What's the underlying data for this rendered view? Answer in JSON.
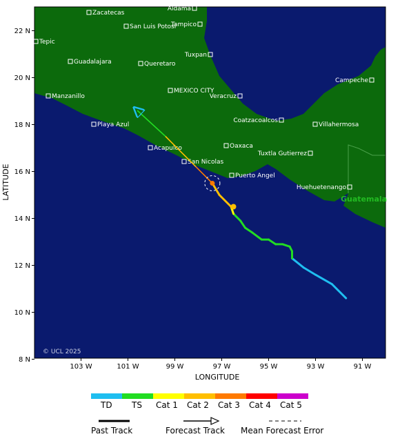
{
  "map": {
    "colors": {
      "ocean": "#0a1a6e",
      "land": "#0c6a0c",
      "border": "#4aa04a"
    },
    "axes": {
      "x_title": "LONGITUDE",
      "y_title": "LATITUDE",
      "x_ticks": [
        "103 W",
        "101 W",
        "99 W",
        "97 W",
        "95 W",
        "93 W",
        "91 W"
      ],
      "y_ticks": [
        "22 N",
        "20 N",
        "18 N",
        "16 N",
        "14 N",
        "12 N",
        "10 N",
        "8 N"
      ]
    },
    "cities": [
      {
        "name": "Zacatecas"
      },
      {
        "name": "Aldama"
      },
      {
        "name": "Tampico"
      },
      {
        "name": "San Luis Potosi"
      },
      {
        "name": "Tepic"
      },
      {
        "name": "Guadalajara"
      },
      {
        "name": "Queretaro"
      },
      {
        "name": "Tuxpan"
      },
      {
        "name": "Manzanillo"
      },
      {
        "name": "MEXICO CITY"
      },
      {
        "name": "Veracruz"
      },
      {
        "name": "Campeche"
      },
      {
        "name": "Playa Azul"
      },
      {
        "name": "Coatzacoalcos"
      },
      {
        "name": "Villahermosa"
      },
      {
        "name": "Acapulco"
      },
      {
        "name": "Oaxaca"
      },
      {
        "name": "Tuxtla Gutierrez"
      },
      {
        "name": "San Nicolas"
      },
      {
        "name": "Puerto Angel"
      },
      {
        "name": "Huehuetenango"
      }
    ],
    "country_label": "Guatemala",
    "copyright": "© UCL 2025",
    "track": {
      "past_points_lonlat": [
        [
          -91.7,
          10.6
        ],
        [
          -92.3,
          11.2
        ],
        [
          -93.0,
          11.6
        ],
        [
          -93.5,
          11.9
        ],
        [
          -94.0,
          12.3
        ],
        [
          -94.0,
          12.6
        ],
        [
          -94.1,
          12.8
        ],
        [
          -94.4,
          12.9
        ],
        [
          -94.7,
          12.9
        ],
        [
          -95.0,
          13.1
        ],
        [
          -95.3,
          13.1
        ],
        [
          -95.7,
          13.4
        ],
        [
          -96.0,
          13.6
        ],
        [
          -96.2,
          13.9
        ],
        [
          -96.5,
          14.2
        ],
        [
          -96.6,
          14.5
        ],
        [
          -97.1,
          15.0
        ],
        [
          -97.4,
          15.5
        ]
      ],
      "forecast_points_lonlat": [
        [
          -97.4,
          15.5
        ],
        [
          -98.1,
          16.2
        ],
        [
          -99.4,
          17.5
        ],
        [
          -100.6,
          18.6
        ]
      ],
      "current_position_lonlat": [
        -97.4,
        15.5
      ],
      "intensity_marker_lonlat": [
        -96.5,
        14.5
      ]
    }
  },
  "legend": {
    "categories": [
      {
        "label": "TD",
        "color": "#1fbef0"
      },
      {
        "label": "TS",
        "color": "#22dd22"
      },
      {
        "label": "Cat 1",
        "color": "#ffff00"
      },
      {
        "label": "Cat 2",
        "color": "#ffbf00"
      },
      {
        "label": "Cat 3",
        "color": "#ff7a00"
      },
      {
        "label": "Cat 4",
        "color": "#ff0000"
      },
      {
        "label": "Cat 5",
        "color": "#cc00cc"
      }
    ],
    "past_track_label": "Past Track",
    "forecast_track_label": "Forecast Track",
    "error_label": "Mean Forecast Error"
  }
}
